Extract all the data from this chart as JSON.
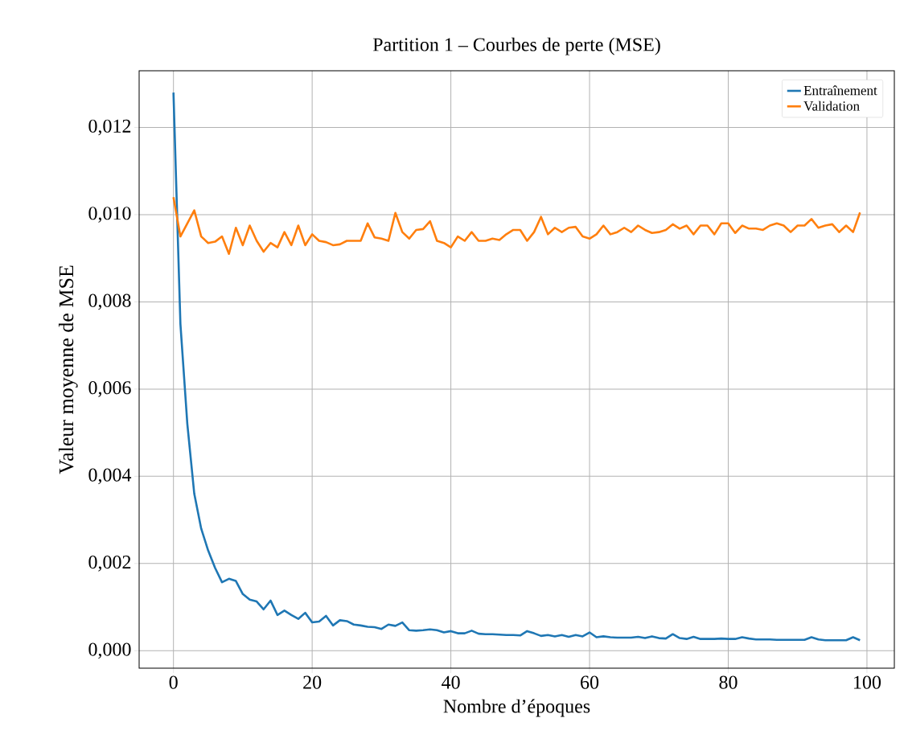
{
  "chart_data": {
    "type": "line",
    "title": "Partition 1 – Courbes de perte (MSE)",
    "xlabel": "Nombre d’époques",
    "ylabel": "Valeur moyenne de MSE",
    "x": [
      0,
      1,
      2,
      3,
      4,
      5,
      6,
      7,
      8,
      9,
      10,
      11,
      12,
      13,
      14,
      15,
      16,
      17,
      18,
      19,
      20,
      21,
      22,
      23,
      24,
      25,
      26,
      27,
      28,
      29,
      30,
      31,
      32,
      33,
      34,
      35,
      36,
      37,
      38,
      39,
      40,
      41,
      42,
      43,
      44,
      45,
      46,
      47,
      48,
      49,
      50,
      51,
      52,
      53,
      54,
      55,
      56,
      57,
      58,
      59,
      60,
      61,
      62,
      63,
      64,
      65,
      66,
      67,
      68,
      69,
      70,
      71,
      72,
      73,
      74,
      75,
      76,
      77,
      78,
      79,
      80,
      81,
      82,
      83,
      84,
      85,
      86,
      87,
      88,
      89,
      90,
      91,
      92,
      93,
      94,
      95,
      96,
      97,
      98,
      99
    ],
    "series": [
      {
        "name": "Entraînement",
        "color": "#1f77b4",
        "values": [
          0.0128,
          0.0075,
          0.0052,
          0.0036,
          0.0028,
          0.0023,
          0.0019,
          0.00157,
          0.00165,
          0.0016,
          0.0013,
          0.00117,
          0.00113,
          0.00095,
          0.00115,
          0.00082,
          0.00092,
          0.00082,
          0.00073,
          0.00087,
          0.00065,
          0.00067,
          0.0008,
          0.00058,
          0.0007,
          0.00068,
          0.0006,
          0.00058,
          0.00055,
          0.00054,
          0.0005,
          0.0006,
          0.00057,
          0.00065,
          0.00047,
          0.00046,
          0.00047,
          0.00049,
          0.00047,
          0.00042,
          0.00045,
          0.0004,
          0.0004,
          0.00046,
          0.00039,
          0.00038,
          0.00038,
          0.00037,
          0.00036,
          0.00036,
          0.00035,
          0.00045,
          0.0004,
          0.00034,
          0.00036,
          0.00033,
          0.00036,
          0.00032,
          0.00036,
          0.00033,
          0.00042,
          0.00031,
          0.00033,
          0.00031,
          0.0003,
          0.0003,
          0.0003,
          0.00032,
          0.00029,
          0.00033,
          0.00029,
          0.00028,
          0.00038,
          0.00029,
          0.00027,
          0.00032,
          0.00027,
          0.00027,
          0.00027,
          0.00028,
          0.00027,
          0.00027,
          0.00031,
          0.00028,
          0.00026,
          0.00026,
          0.00026,
          0.00025,
          0.00025,
          0.00025,
          0.00025,
          0.00025,
          0.00031,
          0.00026,
          0.00024,
          0.00024,
          0.00024,
          0.00024,
          0.00031,
          0.00024
        ]
      },
      {
        "name": "Validation",
        "color": "#ff7f0e",
        "values": [
          0.0104,
          0.0095,
          0.0098,
          0.0101,
          0.0095,
          0.00935,
          0.00938,
          0.0095,
          0.0091,
          0.0097,
          0.0093,
          0.00975,
          0.0094,
          0.00915,
          0.00935,
          0.00925,
          0.0096,
          0.0093,
          0.00975,
          0.0093,
          0.00955,
          0.0094,
          0.00937,
          0.0093,
          0.00932,
          0.0094,
          0.0094,
          0.0094,
          0.0098,
          0.00948,
          0.00945,
          0.0094,
          0.01004,
          0.0096,
          0.00945,
          0.00965,
          0.00967,
          0.00985,
          0.0094,
          0.00935,
          0.00925,
          0.0095,
          0.0094,
          0.0096,
          0.0094,
          0.0094,
          0.00945,
          0.00942,
          0.00955,
          0.00965,
          0.00965,
          0.0094,
          0.0096,
          0.00995,
          0.00955,
          0.0097,
          0.0096,
          0.0097,
          0.00972,
          0.0095,
          0.00945,
          0.00955,
          0.00975,
          0.00955,
          0.0096,
          0.0097,
          0.0096,
          0.00975,
          0.00965,
          0.00958,
          0.0096,
          0.00965,
          0.00978,
          0.00968,
          0.00975,
          0.00955,
          0.00975,
          0.00975,
          0.00955,
          0.0098,
          0.0098,
          0.00958,
          0.00975,
          0.00968,
          0.00968,
          0.00965,
          0.00975,
          0.0098,
          0.00975,
          0.0096,
          0.00975,
          0.00975,
          0.0099,
          0.0097,
          0.00975,
          0.00978,
          0.0096,
          0.00975,
          0.0096,
          0.01005
        ]
      }
    ],
    "xlim": [
      -4.95,
      103.95
    ],
    "ylim": [
      -0.0004,
      0.0133
    ],
    "xticks": [
      0,
      20,
      40,
      60,
      80,
      100
    ],
    "yticks": [
      {
        "value": 0,
        "label": "0,000"
      },
      {
        "value": 0.002,
        "label": "0,002"
      },
      {
        "value": 0.004,
        "label": "0,004"
      },
      {
        "value": 0.006,
        "label": "0,006"
      },
      {
        "value": 0.008,
        "label": "0,008"
      },
      {
        "value": 0.01,
        "label": "0,010"
      },
      {
        "value": 0.012,
        "label": "0,012"
      }
    ],
    "grid": true,
    "legend": "top right",
    "marker": "none",
    "line_style": "solid"
  }
}
